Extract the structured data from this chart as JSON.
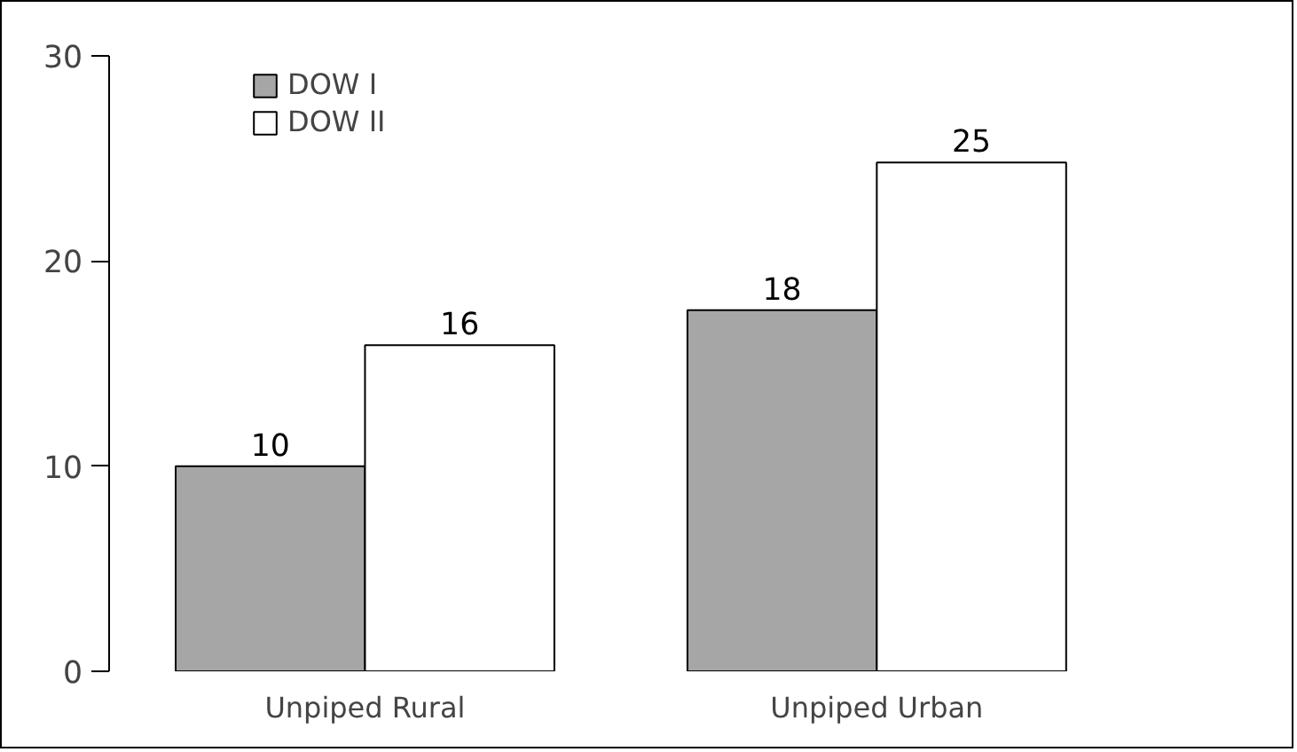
{
  "chart_data": {
    "type": "bar",
    "categories": [
      "Unpiped Rural",
      "Unpiped Urban"
    ],
    "series": [
      {
        "name": "DOW I",
        "color": "#a6a6a6",
        "values": [
          10,
          17.6
        ],
        "value_labels": [
          "10",
          "18"
        ]
      },
      {
        "name": "DOW II",
        "color": "#ffffff",
        "values": [
          15.9,
          24.8
        ],
        "value_labels": [
          "16",
          "25"
        ]
      }
    ],
    "ylim": [
      0,
      30
    ],
    "yticks": [
      0,
      10,
      20,
      30
    ],
    "grid": false,
    "legend": "top left"
  }
}
